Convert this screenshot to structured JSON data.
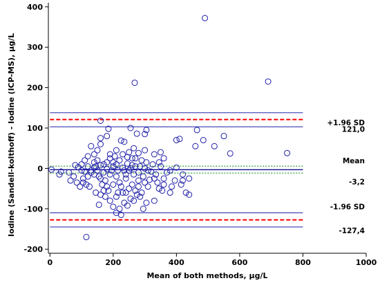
{
  "chart_data": {
    "type": "scatter",
    "xlabel": "Mean of both methods, µg/L",
    "ylabel": "Iodine (Sandell-kolthoff) - Iodine (ICP-MS), µg/L",
    "xlim": [
      -5,
      1000
    ],
    "ylim": [
      -210,
      410
    ],
    "xticks": [
      0,
      200,
      400,
      600,
      800,
      1000
    ],
    "yticks": [
      -200,
      -100,
      0,
      100,
      200,
      300,
      400
    ],
    "xtick_labels": [
      "0",
      "200",
      "400",
      "600",
      "800",
      "1000"
    ],
    "ytick_labels": [
      "-200",
      "-100",
      "0",
      "100",
      "200",
      "300",
      "400"
    ],
    "grid": false,
    "lines": {
      "line_extent_x": [
        0,
        800
      ],
      "mean": -3.2,
      "mean_ci": [
        -11.5,
        5.5
      ],
      "upper_loa": 121.0,
      "upper_loa_ci": [
        103,
        138
      ],
      "lower_loa": -127.4,
      "lower_loa_ci": [
        -145,
        -110
      ]
    },
    "annotations": {
      "upper_label": "+1.96 SD",
      "upper_value": "121,0",
      "mean_label": "Mean",
      "mean_value": "-3,2",
      "lower_label": "-1.96 SD",
      "lower_value": "-127,4"
    },
    "colors": {
      "points": "#1f1fa8",
      "ci_lines": "#1f1fa8",
      "loa_lines": "#ff0000",
      "mean_line": "#1f1f9a",
      "mean_ci_lines": "#008000"
    },
    "points": [
      [
        490,
        372
      ],
      [
        268,
        212
      ],
      [
        690,
        215
      ],
      [
        160,
        118
      ],
      [
        255,
        100
      ],
      [
        305,
        95
      ],
      [
        550,
        80
      ],
      [
        465,
        95
      ],
      [
        410,
        73
      ],
      [
        185,
        98
      ],
      [
        225,
        69
      ],
      [
        275,
        86
      ],
      [
        400,
        70
      ],
      [
        485,
        70
      ],
      [
        520,
        55
      ],
      [
        570,
        37
      ],
      [
        750,
        38
      ],
      [
        460,
        55
      ],
      [
        300,
        85
      ],
      [
        180,
        80
      ],
      [
        160,
        75
      ],
      [
        235,
        66
      ],
      [
        265,
        50
      ],
      [
        300,
        45
      ],
      [
        350,
        40
      ],
      [
        210,
        45
      ],
      [
        250,
        40
      ],
      [
        150,
        45
      ],
      [
        160,
        60
      ],
      [
        130,
        55
      ],
      [
        140,
        35
      ],
      [
        190,
        35
      ],
      [
        230,
        35
      ],
      [
        280,
        38
      ],
      [
        330,
        35
      ],
      [
        360,
        25
      ],
      [
        220,
        20
      ],
      [
        260,
        25
      ],
      [
        290,
        20
      ],
      [
        200,
        15
      ],
      [
        170,
        10
      ],
      [
        140,
        15
      ],
      [
        110,
        20
      ],
      [
        100,
        10
      ],
      [
        120,
        5
      ],
      [
        90,
        3
      ],
      [
        80,
        8
      ],
      [
        100,
        -5
      ],
      [
        110,
        -8
      ],
      [
        130,
        -10
      ],
      [
        150,
        -5
      ],
      [
        180,
        -2
      ],
      [
        200,
        5
      ],
      [
        230,
        2
      ],
      [
        250,
        -5
      ],
      [
        270,
        5
      ],
      [
        300,
        0
      ],
      [
        320,
        -8
      ],
      [
        350,
        5
      ],
      [
        380,
        -5
      ],
      [
        400,
        2
      ],
      [
        420,
        -15
      ],
      [
        440,
        -25
      ],
      [
        5,
        -3
      ],
      [
        35,
        -8
      ],
      [
        30,
        -15
      ],
      [
        60,
        -10
      ],
      [
        75,
        -20
      ],
      [
        65,
        -30
      ],
      [
        85,
        -35
      ],
      [
        120,
        -20
      ],
      [
        140,
        -15
      ],
      [
        160,
        -25
      ],
      [
        175,
        -30
      ],
      [
        190,
        -15
      ],
      [
        210,
        -20
      ],
      [
        220,
        -35
      ],
      [
        240,
        -25
      ],
      [
        260,
        -40
      ],
      [
        280,
        -30
      ],
      [
        300,
        -35
      ],
      [
        310,
        -45
      ],
      [
        330,
        -25
      ],
      [
        345,
        -50
      ],
      [
        360,
        -40
      ],
      [
        380,
        -60
      ],
      [
        415,
        -40
      ],
      [
        430,
        -60
      ],
      [
        440,
        -65
      ],
      [
        395,
        -30
      ],
      [
        280,
        -10
      ],
      [
        250,
        -50
      ],
      [
        230,
        -60
      ],
      [
        210,
        -70
      ],
      [
        190,
        -80
      ],
      [
        200,
        -95
      ],
      [
        210,
        -110
      ],
      [
        220,
        -100
      ],
      [
        225,
        -115
      ],
      [
        235,
        -85
      ],
      [
        240,
        -60
      ],
      [
        255,
        -75
      ],
      [
        265,
        -80
      ],
      [
        270,
        -55
      ],
      [
        275,
        -65
      ],
      [
        285,
        -70
      ],
      [
        295,
        -100
      ],
      [
        305,
        -85
      ],
      [
        160,
        -65
      ],
      [
        155,
        -90
      ],
      [
        170,
        -55
      ],
      [
        175,
        -70
      ],
      [
        145,
        -60
      ],
      [
        125,
        -45
      ],
      [
        115,
        -40
      ],
      [
        105,
        -35
      ],
      [
        115,
        -170
      ],
      [
        210,
        10
      ],
      [
        215,
        -5
      ],
      [
        245,
        12
      ],
      [
        255,
        0
      ],
      [
        265,
        -15
      ],
      [
        285,
        5
      ],
      [
        295,
        -20
      ],
      [
        310,
        -5
      ],
      [
        325,
        10
      ],
      [
        335,
        -15
      ],
      [
        360,
        -25
      ],
      [
        370,
        -10
      ],
      [
        180,
        15
      ],
      [
        190,
        25
      ],
      [
        205,
        30
      ],
      [
        245,
        28
      ],
      [
        170,
        -10
      ],
      [
        160,
        8
      ],
      [
        130,
        -5
      ],
      [
        140,
        2
      ],
      [
        150,
        20
      ],
      [
        120,
        30
      ],
      [
        105,
        -25
      ],
      [
        95,
        -45
      ],
      [
        240,
        -15
      ],
      [
        260,
        8
      ],
      [
        280,
        -45
      ],
      [
        305,
        15
      ],
      [
        315,
        -28
      ],
      [
        340,
        -35
      ],
      [
        355,
        -55
      ],
      [
        385,
        -45
      ],
      [
        420,
        -30
      ],
      [
        200,
        -40
      ],
      [
        185,
        -55
      ],
      [
        165,
        -40
      ],
      [
        225,
        -45
      ],
      [
        235,
        -5
      ],
      [
        195,
        -5
      ],
      [
        180,
        -45
      ],
      [
        330,
        -80
      ],
      [
        345,
        15
      ],
      [
        215,
        -60
      ],
      [
        245,
        -92
      ],
      [
        155,
        -20
      ],
      [
        145,
        5
      ],
      [
        270,
        25
      ],
      [
        290,
        -60
      ]
    ]
  }
}
